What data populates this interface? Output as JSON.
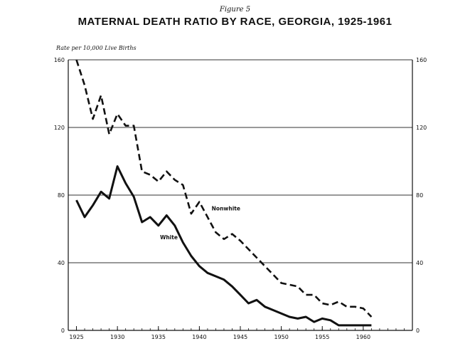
{
  "figure_label": "Figure 5",
  "chart_data": {
    "type": "line",
    "title": "MATERNAL DEATH RATIO BY RACE, GEORGIA, 1925-1961",
    "ylabel": "Rate per 10,000 Live Births",
    "xlabel": "",
    "xlim": [
      1924,
      1966
    ],
    "ylim": [
      0,
      160
    ],
    "x_ticks": [
      1925,
      1930,
      1935,
      1940,
      1945,
      1950,
      1955,
      1960
    ],
    "y_ticks": [
      0,
      40,
      80,
      120,
      160
    ],
    "grid": "horizontal",
    "series": [
      {
        "name": "Nonwhite",
        "style": "dashed",
        "color": "#111111",
        "x": [
          1925,
          1926,
          1927,
          1928,
          1929,
          1930,
          1931,
          1932,
          1933,
          1934,
          1935,
          1936,
          1937,
          1938,
          1939,
          1940,
          1941,
          1942,
          1943,
          1944,
          1945,
          1946,
          1947,
          1948,
          1949,
          1950,
          1951,
          1952,
          1953,
          1954,
          1955,
          1956,
          1957,
          1958,
          1959,
          1960,
          1961
        ],
        "values": [
          160,
          145,
          125,
          139,
          116,
          128,
          121,
          121,
          94,
          92,
          88,
          94,
          89,
          86,
          69,
          76,
          67,
          58,
          54,
          57,
          53,
          48,
          43,
          38,
          33,
          28,
          27,
          26,
          21,
          21,
          16,
          15,
          17,
          14,
          14,
          13,
          8
        ]
      },
      {
        "name": "White",
        "style": "solid",
        "color": "#111111",
        "x": [
          1925,
          1926,
          1927,
          1928,
          1929,
          1930,
          1931,
          1932,
          1933,
          1934,
          1935,
          1936,
          1937,
          1938,
          1939,
          1940,
          1941,
          1942,
          1943,
          1944,
          1945,
          1946,
          1947,
          1948,
          1949,
          1950,
          1951,
          1952,
          1953,
          1954,
          1955,
          1956,
          1957,
          1958,
          1959,
          1960,
          1961
        ],
        "values": [
          77,
          67,
          74,
          82,
          78,
          97,
          87,
          79,
          64,
          67,
          62,
          68,
          62,
          52,
          44,
          38,
          34,
          32,
          30,
          26,
          21,
          16,
          18,
          14,
          12,
          10,
          8,
          7,
          8,
          5,
          7,
          6,
          3,
          3,
          3,
          3,
          3
        ]
      }
    ]
  }
}
